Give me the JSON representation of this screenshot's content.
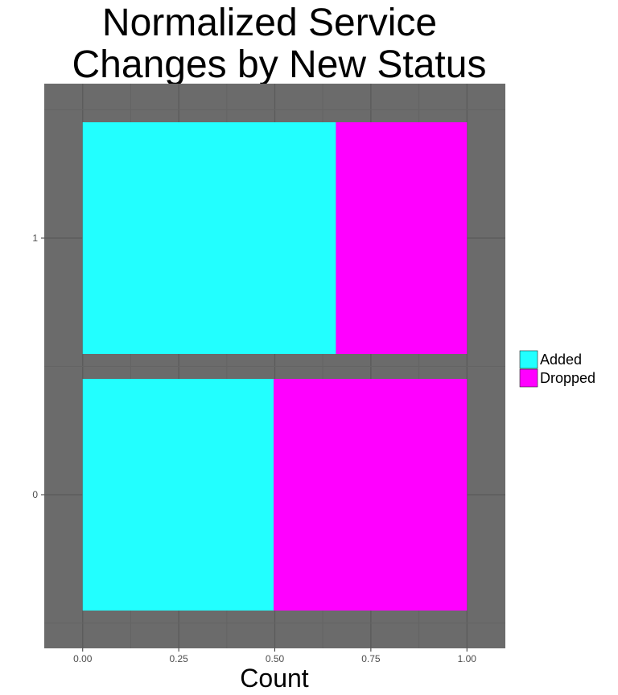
{
  "chart_data": {
    "type": "bar",
    "orientation": "horizontal",
    "stacked": true,
    "normalized": true,
    "title": "Normalized Service Changes by New Status",
    "title_lines": [
      "Normalized Service",
      "Changes by New Status"
    ],
    "xlabel": "Count",
    "ylabel": "",
    "xlim": [
      -0.1,
      1.1
    ],
    "xticks": [
      "0.00",
      "0.25",
      "0.50",
      "0.75",
      "1.00"
    ],
    "categories": [
      "0",
      "1"
    ],
    "series": [
      {
        "name": "Added",
        "values": [
          0.497,
          0.659
        ]
      },
      {
        "name": "Dropped",
        "values": [
          0.503,
          0.341
        ]
      }
    ],
    "grid": true,
    "legend_position": "right",
    "colors": {
      "Added": "#22ffff",
      "Dropped": "#ff00ff",
      "panel": "#6b6b6b",
      "grid_major": "#5a5a5a",
      "grid_minor": "#646464"
    }
  }
}
